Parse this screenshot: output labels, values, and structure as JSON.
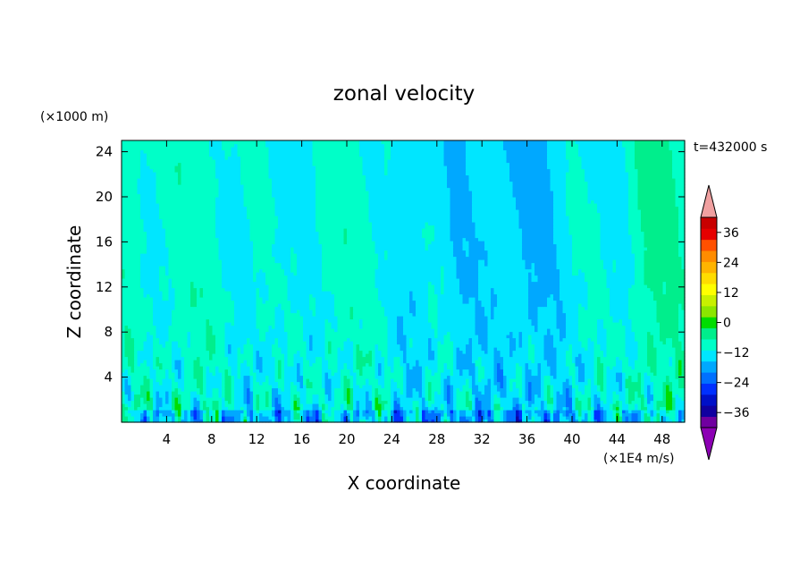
{
  "chart_data": {
    "type": "heatmap",
    "title": "zonal velocity",
    "xlabel": "X coordinate",
    "ylabel": "Z coordinate",
    "x_unit_label": "(×1E4 m/s)",
    "y_unit_label": "(×1000 m)",
    "time_label": "t=432000 s",
    "xlim": [
      0,
      50
    ],
    "ylim": [
      0,
      25
    ],
    "xticks": [
      4,
      8,
      12,
      16,
      20,
      24,
      28,
      32,
      36,
      40,
      44,
      48
    ],
    "yticks": [
      4,
      8,
      12,
      16,
      20,
      24
    ],
    "colorbar": {
      "min": -42,
      "max": 42,
      "step": 6,
      "tick_values": [
        36,
        24,
        12,
        0,
        -12,
        -24,
        -36
      ],
      "extend": "both",
      "colors": [
        "#7000a0",
        "#1000a0",
        "#0010c8",
        "#0030ff",
        "#0070ff",
        "#00a8ff",
        "#00e6ff",
        "#00ffc8",
        "#00ee8c",
        "#00dd00",
        "#8ce600",
        "#c8f000",
        "#ffff00",
        "#ffdc00",
        "#ffb400",
        "#ff8c00",
        "#ff5000",
        "#e60000",
        "#c80000"
      ],
      "over_color": "#f0a0a0",
      "under_color": "#8c00b4"
    },
    "field": {
      "description_units": "zonal velocity samples (x from 0 to 50, z from 0 to 25); columns = x, rows = z from bottom",
      "column_mean_profile": [
        3,
        4,
        2,
        1,
        2,
        3,
        3,
        3,
        3,
        2,
        -1,
        -1,
        0,
        -2,
        -3,
        0,
        -2,
        1,
        3,
        3,
        2,
        2,
        1,
        2,
        -3,
        -4,
        -4,
        -3,
        -3,
        -6,
        -5,
        -5,
        -6,
        -7,
        -7,
        -8,
        -8,
        -6,
        -5,
        -2,
        -2,
        -1,
        0,
        0,
        1,
        6,
        8,
        7,
        7,
        6
      ]
    }
  }
}
